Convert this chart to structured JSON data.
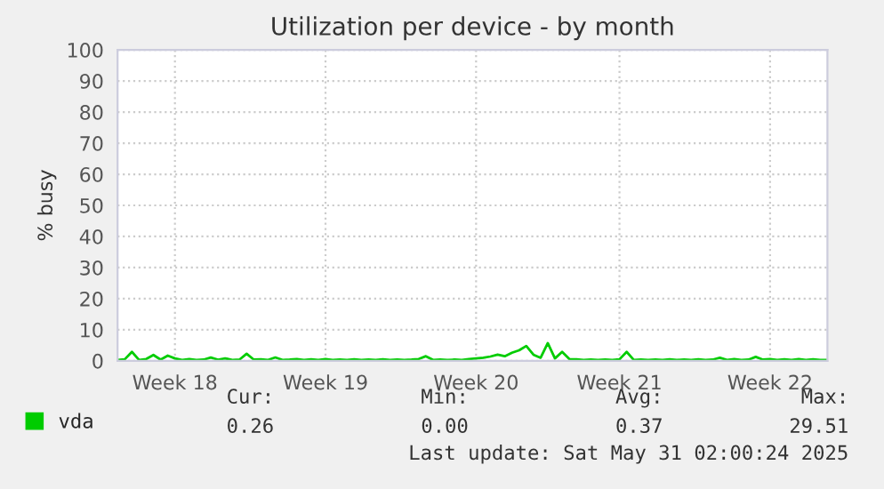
{
  "chart_data": {
    "type": "line",
    "title": "Utilization per device - by month",
    "ylabel": "% busy",
    "categories": [
      null,
      null,
      null,
      null,
      null,
      null,
      null,
      null,
      "Week 18",
      null,
      null,
      null,
      null,
      null,
      null,
      null,
      null,
      null,
      null,
      null,
      null,
      null,
      null,
      null,
      null,
      null,
      null,
      null,
      null,
      "Week 19",
      null,
      null,
      null,
      null,
      null,
      null,
      null,
      null,
      null,
      null,
      null,
      null,
      null,
      null,
      null,
      null,
      null,
      null,
      null,
      null,
      "Week 20",
      null,
      null,
      null,
      null,
      null,
      null,
      null,
      null,
      null,
      null,
      null,
      null,
      null,
      null,
      null,
      null,
      null,
      null,
      null,
      "Week 21",
      null,
      null,
      null,
      null,
      null,
      null,
      null,
      null,
      null,
      null,
      null,
      null,
      null,
      null,
      null,
      null,
      null,
      null,
      null,
      null,
      "Week 22",
      null,
      null,
      null,
      null,
      null,
      null,
      null,
      null
    ],
    "ylim": [
      0,
      100
    ],
    "yticks": [
      0,
      10,
      20,
      30,
      40,
      50,
      60,
      70,
      80,
      90,
      100
    ],
    "grid": true,
    "legend": "bottom left",
    "series": [
      {
        "name": "vda",
        "color": "#00cc00",
        "values": [
          0.3,
          0.5,
          2.9,
          0.3,
          0.6,
          1.9,
          0.4,
          1.7,
          0.8,
          0.3,
          0.6,
          0.3,
          0.4,
          1.1,
          0.4,
          0.8,
          0.3,
          0.4,
          2.3,
          0.4,
          0.5,
          0.3,
          1.1,
          0.3,
          0.4,
          0.6,
          0.3,
          0.5,
          0.3,
          0.6,
          0.3,
          0.4,
          0.3,
          0.5,
          0.3,
          0.4,
          0.3,
          0.5,
          0.3,
          0.4,
          0.3,
          0.4,
          0.6,
          1.5,
          0.3,
          0.4,
          0.3,
          0.4,
          0.3,
          0.6,
          0.8,
          1.0,
          1.4,
          2.0,
          1.5,
          2.6,
          3.4,
          4.8,
          2.0,
          1.0,
          5.7,
          0.8,
          2.9,
          0.6,
          0.5,
          0.3,
          0.4,
          0.3,
          0.4,
          0.3,
          0.5,
          2.9,
          0.3,
          0.4,
          0.3,
          0.4,
          0.3,
          0.5,
          0.3,
          0.4,
          0.3,
          0.5,
          0.3,
          0.4,
          1.0,
          0.3,
          0.6,
          0.3,
          0.4,
          1.3,
          0.4,
          0.6,
          0.3,
          0.5,
          0.3,
          0.6,
          0.3,
          0.5,
          0.3,
          0.3
        ]
      }
    ],
    "annotations": [
      "Cur:",
      "Min:",
      "Avg:",
      "Max:",
      "0.26",
      "0.00",
      "0.37",
      "29.51",
      "Last update: Sat May 31 02:00:24 2025"
    ]
  }
}
